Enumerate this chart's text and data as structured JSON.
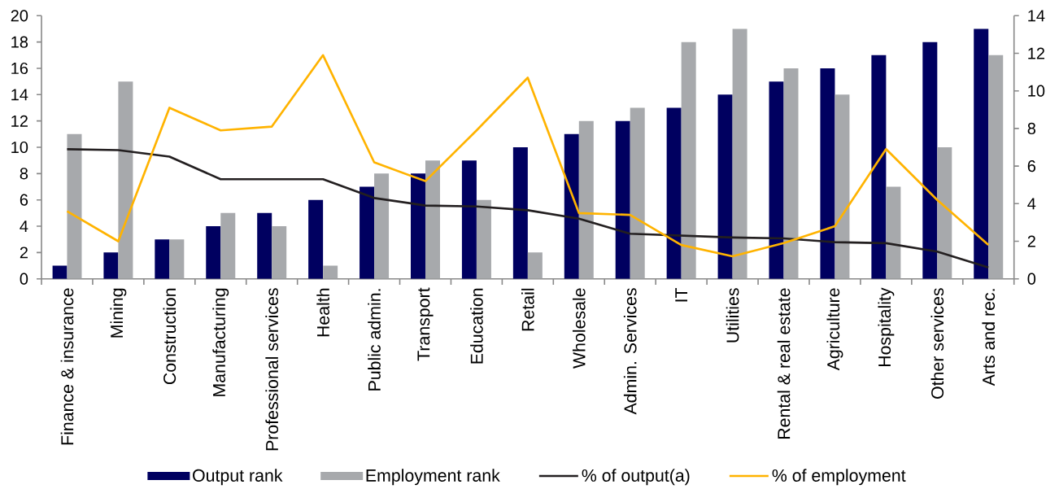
{
  "chart_data": {
    "type": "bar",
    "categories": [
      "Finance & insurance",
      "Mining",
      "Construction",
      "Manufacturing",
      "Professional services",
      "Health",
      "Public admin.",
      "Transport",
      "Education",
      "Retail",
      "Wholesale",
      "Admin. Services",
      "IT",
      "Utilities",
      "Rental & real estate",
      "Agriculture",
      "Hospitality",
      "Other services",
      "Arts and rec."
    ],
    "series": [
      {
        "name": "Output rank",
        "color": "#000060",
        "values": [
          1,
          2,
          3,
          4,
          5,
          6,
          7,
          8,
          9,
          10,
          11,
          12,
          13,
          14,
          15,
          16,
          17,
          18,
          19
        ]
      },
      {
        "name": "Employment rank",
        "color": "#a7a9ac",
        "values": [
          11,
          15,
          3,
          5,
          4,
          1,
          8,
          9,
          6,
          2,
          12,
          13,
          18,
          19,
          16,
          14,
          7,
          10,
          17
        ]
      },
      {
        "name": "% of output(a)",
        "type": "line",
        "axis": "y2",
        "color": "#231f20",
        "values": [
          6.9,
          6.85,
          6.5,
          5.3,
          5.3,
          5.3,
          4.3,
          3.9,
          3.85,
          3.65,
          3.2,
          2.4,
          2.3,
          2.2,
          2.15,
          1.95,
          1.9,
          1.45,
          0.6
        ]
      },
      {
        "name": "% of employment",
        "type": "line",
        "axis": "y2",
        "color": "#ffb300",
        "values": [
          3.6,
          2.0,
          9.1,
          7.9,
          8.1,
          11.9,
          6.2,
          5.2,
          7.9,
          10.7,
          3.5,
          3.4,
          1.8,
          1.2,
          1.9,
          2.8,
          6.9,
          4.2,
          1.8
        ]
      }
    ],
    "ylim": [
      0,
      20
    ],
    "yticks": [
      0,
      2,
      4,
      6,
      8,
      10,
      12,
      14,
      16,
      18,
      20
    ],
    "y2lim": [
      0,
      14
    ],
    "y2ticks": [
      0,
      2,
      4,
      6,
      8,
      10,
      12,
      14
    ],
    "legend": "bottom"
  }
}
